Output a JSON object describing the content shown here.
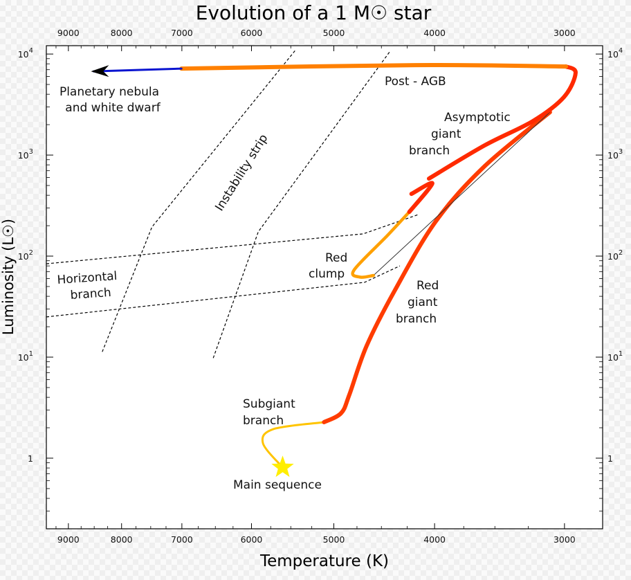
{
  "chart_data": {
    "type": "line",
    "title": "Evolution of a 1 M☉ star",
    "xlabel": "Temperature (K)",
    "ylabel": "Luminosity (L☉)",
    "x_scale": "log",
    "x_reversed": true,
    "xlim": [
      9450,
      2757
    ],
    "y_scale": "log",
    "ylim": [
      0.2,
      12100
    ],
    "grid": false,
    "x_ticks": [
      "9000",
      "8000",
      "7000",
      "6000",
      "5000",
      "4000",
      "3000"
    ],
    "x_tick_values": [
      9000,
      8000,
      7000,
      6000,
      5000,
      4000,
      3000
    ],
    "y_ticks": [
      {
        "value": 10000,
        "base": "10",
        "exp": "4"
      },
      {
        "value": 1000,
        "base": "10",
        "exp": "3"
      },
      {
        "value": 100,
        "base": "10",
        "exp": "2"
      },
      {
        "value": 10,
        "base": "10",
        "exp": "1"
      },
      {
        "value": 1,
        "base": "1",
        "exp": ""
      }
    ],
    "series": [
      {
        "phase": "subgiant",
        "color": "#ffc400",
        "points": [
          [
            5600,
            0.81
          ],
          [
            5850,
            1.41
          ],
          [
            5715,
            1.94
          ],
          [
            5110,
            2.27
          ]
        ]
      },
      {
        "phase": "red-giant",
        "color": "#ff3c00",
        "points": [
          [
            5110,
            2.27
          ],
          [
            4920,
            2.79
          ],
          [
            4830,
            4.27
          ],
          [
            4650,
            12.9
          ],
          [
            4370,
            45.4
          ],
          [
            3990,
            220
          ],
          [
            3580,
            777
          ],
          [
            3098,
            2660
          ]
        ]
      },
      {
        "phase": "helium-flash",
        "color": "#333333",
        "points": [
          [
            3098,
            2660
          ],
          [
            4580,
            64.3
          ]
        ]
      },
      {
        "phase": "red-clump",
        "color": "#ffa000",
        "points": [
          [
            4580,
            64.3
          ],
          [
            4720,
            62
          ],
          [
            4780,
            73
          ],
          [
            4440,
            160
          ],
          [
            4230,
            274
          ]
        ]
      },
      {
        "phase": "asymptotic-giant",
        "color": "#ff2a00",
        "points": [
          [
            4230,
            274
          ],
          [
            4020,
            524
          ],
          [
            4210,
            413
          ]
        ]
      },
      {
        "phase": "asymptotic-giant-upper",
        "color": "#ff2a00",
        "points": [
          [
            4050,
            585
          ],
          [
            3580,
            1247
          ],
          [
            3218,
            2167
          ],
          [
            3003,
            3760
          ],
          [
            2927,
            6530
          ],
          [
            2990,
            7530
          ]
        ]
      },
      {
        "phase": "post-agb",
        "color": "#ff8000",
        "points": [
          [
            2990,
            7530
          ],
          [
            4176,
            7770
          ],
          [
            7007,
            7180
          ]
        ]
      },
      {
        "phase": "planetary-nebula",
        "color": "#0a14d0",
        "points": [
          [
            7007,
            7180
          ],
          [
            8510,
            6740
          ]
        ]
      }
    ],
    "guides": [
      {
        "name": "instability-strip-left",
        "points": [
          [
            8350,
            11.3
          ],
          [
            7480,
            194
          ],
          [
            5440,
            11000
          ]
        ]
      },
      {
        "name": "instability-strip-right",
        "points": [
          [
            6530,
            9.8
          ],
          [
            5910,
            174
          ],
          [
            4410,
            10800
          ]
        ]
      },
      {
        "name": "horizontal-branch-upper",
        "points": [
          [
            9450,
            84
          ],
          [
            4685,
            166
          ],
          [
            4145,
            258
          ]
        ]
      },
      {
        "name": "horizontal-branch-lower",
        "points": [
          [
            9450,
            25
          ],
          [
            4670,
            55
          ],
          [
            4320,
            80
          ]
        ]
      }
    ],
    "main_sequence_star": {
      "T": 5600,
      "L": 0.81,
      "color": "#ffee00"
    },
    "annotations": {
      "planetary_nebula": [
        "Planetary nebula",
        "and white dwarf"
      ],
      "post_agb": "Post - AGB",
      "agb": [
        "Asymptotic",
        "giant",
        "branch"
      ],
      "instability_strip": "Instability strip",
      "red_clump": [
        "Red",
        "clump"
      ],
      "horizontal_branch": [
        "Horizontal",
        "branch"
      ],
      "red_giant": [
        "Red",
        "giant",
        "branch"
      ],
      "subgiant": [
        "Subgiant",
        "branch"
      ],
      "main_sequence": "Main sequence"
    }
  }
}
